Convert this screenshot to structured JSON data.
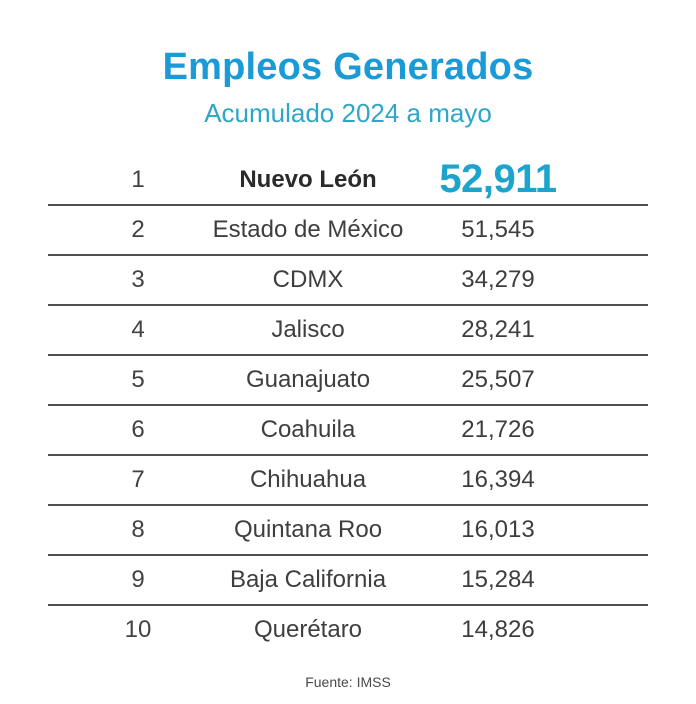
{
  "header": {
    "title": "Empleos Generados",
    "subtitle": "Acumulado 2024 a mayo"
  },
  "footer": {
    "source": "Fuente: IMSS"
  },
  "colors": {
    "title_blue": "#1a9bd7",
    "subtitle_teal": "#2ea6c6",
    "highlight_value_cyan": "#1ca4cc",
    "body_text": "#3e3e3e",
    "divider": "#4f4f4f",
    "background": "#ffffff"
  },
  "chart_data": {
    "type": "table",
    "title": "Empleos Generados",
    "subtitle": "Acumulado 2024 a mayo",
    "columns": [
      "rank",
      "state",
      "jobs_generated"
    ],
    "rows": [
      {
        "rank": "1",
        "state": "Nuevo León",
        "value": "52,911",
        "highlight": true
      },
      {
        "rank": "2",
        "state": "Estado de México",
        "value": "51,545",
        "highlight": false
      },
      {
        "rank": "3",
        "state": "CDMX",
        "value": "34,279",
        "highlight": false
      },
      {
        "rank": "4",
        "state": "Jalisco",
        "value": "28,241",
        "highlight": false
      },
      {
        "rank": "5",
        "state": "Guanajuato",
        "value": "25,507",
        "highlight": false
      },
      {
        "rank": "6",
        "state": "Coahuila",
        "value": "21,726",
        "highlight": false
      },
      {
        "rank": "7",
        "state": "Chihuahua",
        "value": "16,394",
        "highlight": false
      },
      {
        "rank": "8",
        "state": "Quintana Roo",
        "value": "16,013",
        "highlight": false
      },
      {
        "rank": "9",
        "state": "Baja California",
        "value": "15,284",
        "highlight": false
      },
      {
        "rank": "10",
        "state": "Querétaro",
        "value": "14,826",
        "highlight": false
      }
    ],
    "values_numeric": [
      52911,
      51545,
      34279,
      28241,
      25507,
      21726,
      16394,
      16013,
      15284,
      14826
    ],
    "source": "Fuente: IMSS",
    "legend_position": "none",
    "grid": "horizontal-dividers-only"
  }
}
